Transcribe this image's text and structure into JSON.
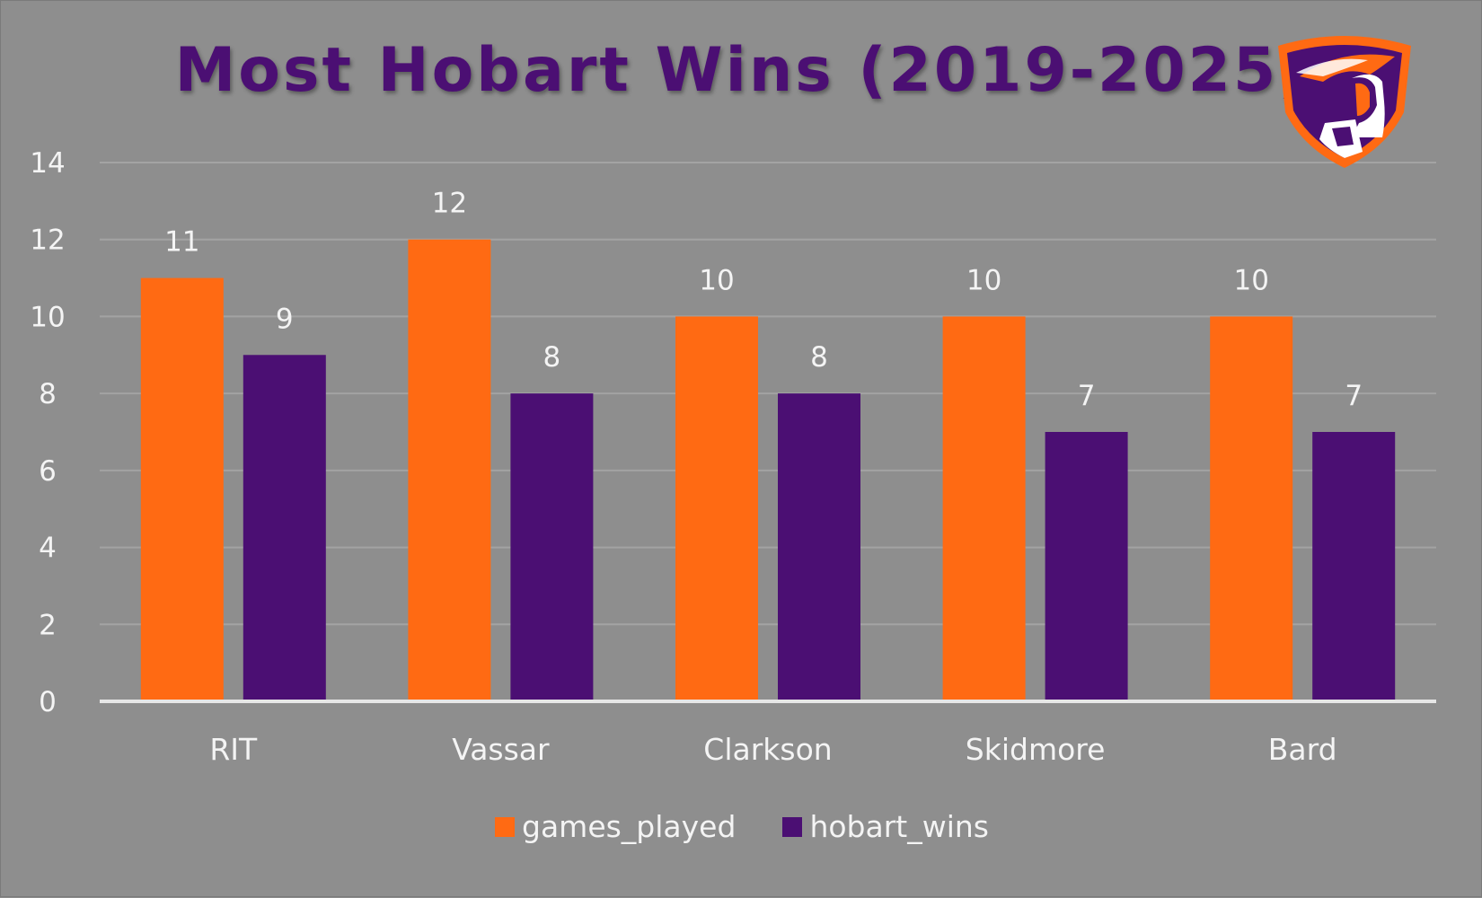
{
  "colors": {
    "background": "#8e8e8e",
    "games_played": "#ff6a13",
    "hobart_wins": "#4b0f73",
    "gridline": "#a3a3a3",
    "axis": "#e6e6e6",
    "text": "#f4f4f4"
  },
  "logo": {
    "icon": "hobart-statesmen-shield-icon"
  },
  "chart_data": {
    "type": "bar",
    "title": "Most Hobart Wins (2019-2025)",
    "categories": [
      "RIT",
      "Vassar",
      "Clarkson",
      "Skidmore",
      "Bard"
    ],
    "series": [
      {
        "name": "games_played",
        "values": [
          11,
          12,
          10,
          10,
          10
        ]
      },
      {
        "name": "hobart_wins",
        "values": [
          9,
          8,
          8,
          7,
          7
        ]
      }
    ],
    "ylim": [
      0,
      14
    ],
    "yticks": [
      "0",
      "2",
      "4",
      "6",
      "8",
      "10",
      "12",
      "14"
    ],
    "grid": true,
    "data_labels": true,
    "legend_position": "bottom"
  }
}
